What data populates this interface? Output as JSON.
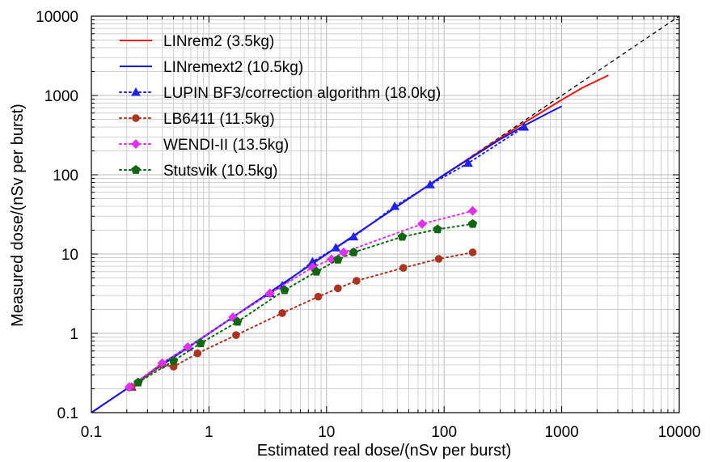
{
  "chart_data": {
    "type": "line",
    "xlabel": "Estimated real dose/(nSv per burst)",
    "ylabel": "Measured dose/(nSv per burst)",
    "xscale": "log",
    "yscale": "log",
    "xlim": [
      0.1,
      10000
    ],
    "ylim": [
      0.1,
      10000
    ],
    "grid": true,
    "legend_position": "top-left",
    "x_ticks": [
      "0.1",
      "1",
      "10",
      "100",
      "1000",
      "10000"
    ],
    "y_ticks": [
      "0.1",
      "1",
      "10",
      "100",
      "1000",
      "10000"
    ],
    "reference_line": {
      "style": "dashed",
      "color": "#000000",
      "x": [
        0.1,
        10000
      ],
      "y": [
        0.1,
        10000
      ]
    },
    "series": [
      {
        "name": "LINrem2 (3.5kg)",
        "color": "#ee1111",
        "line": "solid",
        "marker": "none",
        "x": [
          0.1,
          1,
          10,
          100,
          300,
          500,
          1000,
          1500,
          2500
        ],
        "y": [
          0.1,
          1,
          10,
          100,
          290,
          470,
          880,
          1250,
          1800
        ]
      },
      {
        "name": "LINremext2 (10.5kg)",
        "color": "#1111dd",
        "line": "solid",
        "marker": "none",
        "x": [
          0.1,
          1,
          10,
          100,
          300,
          500,
          800,
          1000
        ],
        "y": [
          0.1,
          1,
          10,
          100,
          280,
          430,
          620,
          730
        ]
      },
      {
        "name": "LUPIN BF3/correction algorithm (18.0kg)",
        "color": "#2222ee",
        "line": "dotted",
        "marker": "triangle",
        "x": [
          0.22,
          0.4,
          0.66,
          1.6,
          3.3,
          4.2,
          7.6,
          12,
          17,
          38,
          76,
          160,
          480
        ],
        "y": [
          0.21,
          0.42,
          0.67,
          1.6,
          3.2,
          4.0,
          8.0,
          12,
          16.5,
          40,
          75,
          140,
          400
        ]
      },
      {
        "name": "LB6411 (11.5kg)",
        "color": "#aa3322",
        "line": "dotted",
        "marker": "circle",
        "x": [
          0.22,
          0.4,
          0.5,
          0.8,
          1.7,
          4.2,
          8.5,
          12.5,
          18,
          45,
          90,
          175
        ],
        "y": [
          0.21,
          0.4,
          0.38,
          0.56,
          0.95,
          1.8,
          2.9,
          3.7,
          4.6,
          6.7,
          8.7,
          10.5
        ]
      },
      {
        "name": "WENDI-II (13.5kg)",
        "color": "#dd33ee",
        "line": "dotted",
        "marker": "diamond",
        "x": [
          0.21,
          0.4,
          0.66,
          1.6,
          3.3,
          7.6,
          11,
          14,
          65,
          175
        ],
        "y": [
          0.21,
          0.42,
          0.67,
          1.6,
          3.2,
          6.8,
          8.6,
          10.5,
          24,
          35
        ]
      },
      {
        "name": "Stutsvik (10.5kg)",
        "color": "#116611",
        "line": "dotted",
        "marker": "pentagon",
        "x": [
          0.25,
          0.5,
          0.85,
          1.75,
          4.4,
          8.2,
          12.5,
          17,
          44,
          88,
          175
        ],
        "y": [
          0.24,
          0.45,
          0.75,
          1.4,
          3.5,
          6.0,
          8.5,
          10.5,
          16.5,
          20.5,
          24
        ]
      }
    ]
  }
}
